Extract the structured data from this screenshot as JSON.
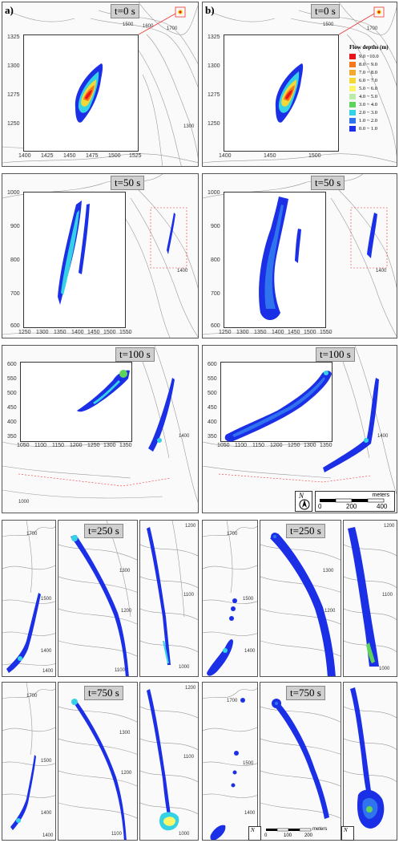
{
  "columns": {
    "a": "a)",
    "b": "b)"
  },
  "times": [
    "t=0 s",
    "t=50 s",
    "t=100 s",
    "t=250 s",
    "t=750 s"
  ],
  "legend": {
    "title": "Flow depths (m)",
    "entries": [
      {
        "label": "9.0  ~10.0",
        "color": "#e8151b"
      },
      {
        "label": "8.0  ~ 9.0",
        "color": "#f5781e"
      },
      {
        "label": "7.0  ~ 8.0",
        "color": "#f0a830"
      },
      {
        "label": "6.0  ~ 7.0",
        "color": "#f3d838"
      },
      {
        "label": "5.0  ~ 6.0",
        "color": "#faf56a"
      },
      {
        "label": "4.0  ~ 5.0",
        "color": "#b9eca8"
      },
      {
        "label": "3.0  ~ 4.0",
        "color": "#5fd35a"
      },
      {
        "label": "2.0  ~ 3.0",
        "color": "#35d2e6"
      },
      {
        "label": "1.0  ~ 2.0",
        "color": "#2f73ee"
      },
      {
        "label": "0.0  ~ 1.0",
        "color": "#1b2fe6"
      }
    ]
  },
  "inset_t0": {
    "y_ticks": [
      "1325",
      "1300",
      "1275",
      "1250"
    ],
    "x_ticks": [
      "1400",
      "1425",
      "1450",
      "1475",
      "1500",
      "1525"
    ]
  },
  "inset_t50": {
    "y_ticks": [
      "1000",
      "900",
      "800",
      "700",
      "600"
    ],
    "x_ticks": [
      "1250",
      "1300",
      "1350",
      "1400",
      "1450",
      "1500",
      "1550"
    ]
  },
  "inset_t100": {
    "y_ticks": [
      "600",
      "550",
      "500",
      "450",
      "400",
      "350"
    ],
    "x_ticks": [
      "1050",
      "1100",
      "1150",
      "1200",
      "1250",
      "1300",
      "1350"
    ]
  },
  "contour_labels": {
    "top_1500": "1500",
    "top_1600": "1600",
    "top_1700": "1700",
    "right_1300": "1300",
    "right_1400": "1400",
    "bottom_1000": "1000",
    "l1700": "1700",
    "l1500": "1500",
    "l1400": "1400",
    "l1300": "1300",
    "l1200": "1200",
    "l1100": "1100",
    "l1000": "1000"
  },
  "scalebar": {
    "units": "meters",
    "labels": [
      "0",
      "200",
      "400"
    ]
  },
  "mini_scale": {
    "units": "meters",
    "labels": [
      "0",
      "100",
      "200"
    ]
  },
  "north_label": "N"
}
